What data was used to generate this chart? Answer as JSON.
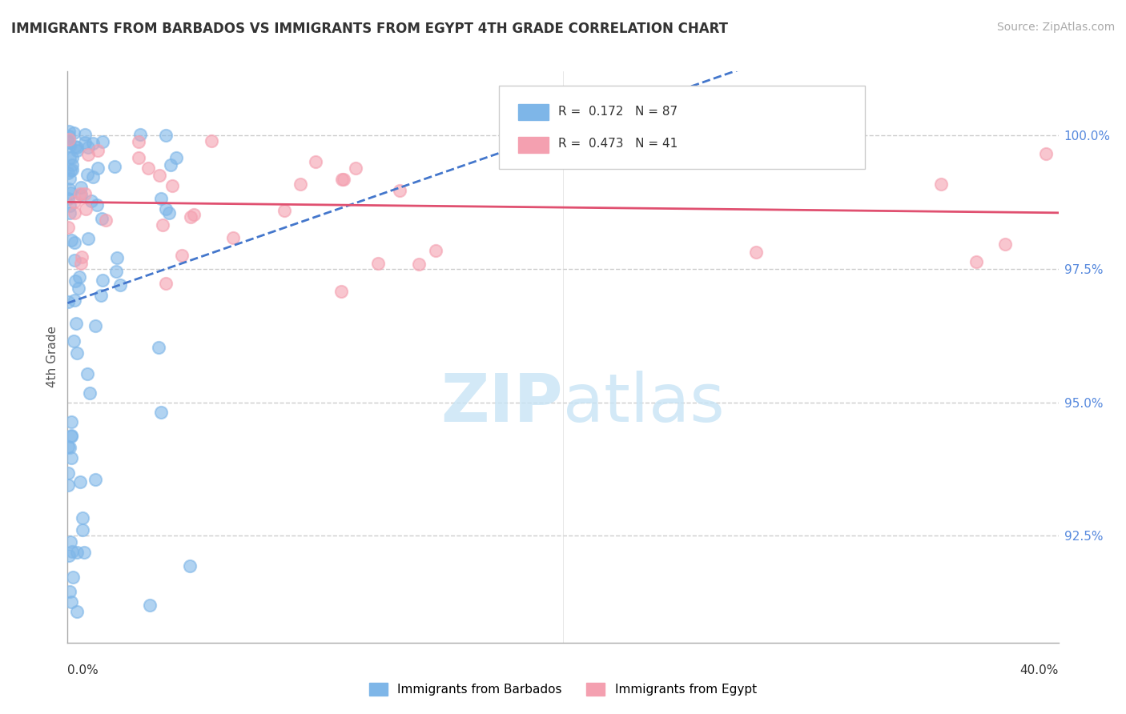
{
  "title": "IMMIGRANTS FROM BARBADOS VS IMMIGRANTS FROM EGYPT 4TH GRADE CORRELATION CHART",
  "source": "Source: ZipAtlas.com",
  "ylabel": "4th Grade",
  "y_ticks": [
    92.5,
    95.0,
    97.5,
    100.0
  ],
  "y_tick_labels": [
    "92.5%",
    "95.0%",
    "97.5%",
    "100.0%"
  ],
  "xlim": [
    0.0,
    40.0
  ],
  "ylim": [
    90.5,
    101.2
  ],
  "barbados_R": 0.172,
  "barbados_N": 87,
  "egypt_R": 0.473,
  "egypt_N": 41,
  "barbados_color": "#7EB6E8",
  "egypt_color": "#F4A0B0",
  "barbados_line_color": "#4477CC",
  "egypt_line_color": "#E05070",
  "legend_label_barbados": "Immigrants from Barbados",
  "legend_label_egypt": "Immigrants from Egypt"
}
